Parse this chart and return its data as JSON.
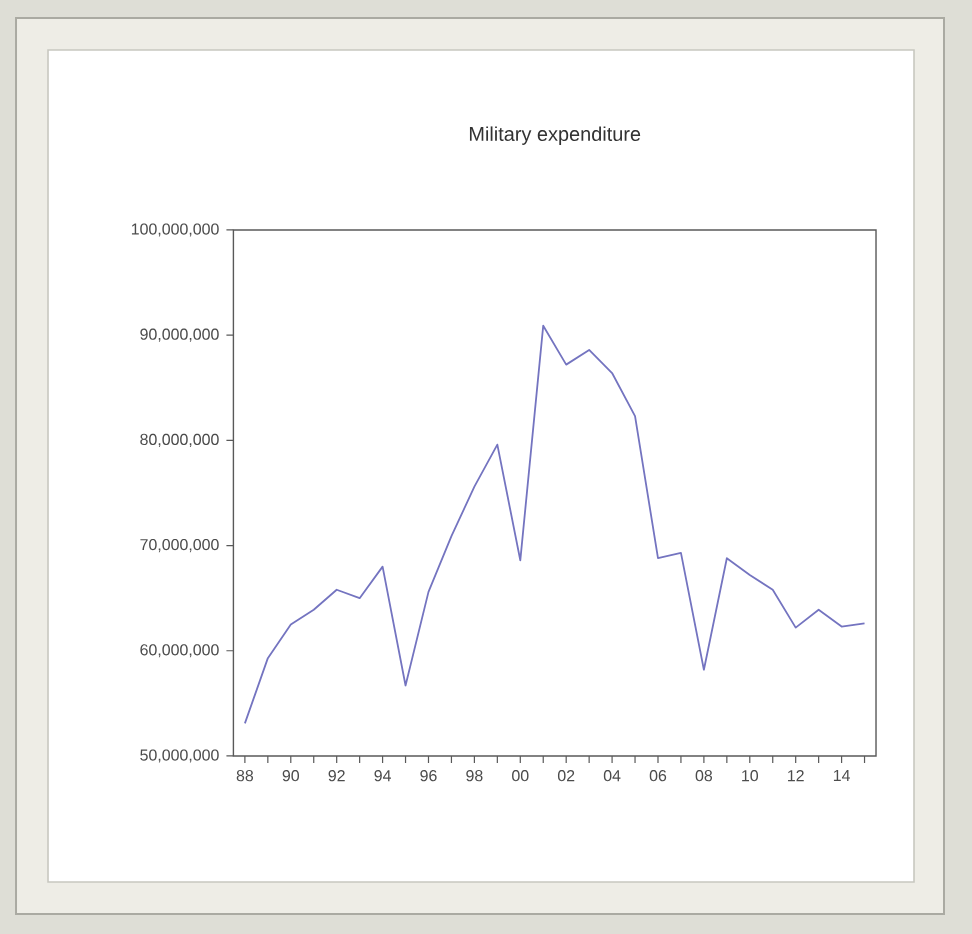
{
  "chart_data": {
    "type": "line",
    "title": "Military expenditure",
    "x": [
      1988,
      1989,
      1990,
      1991,
      1992,
      1993,
      1994,
      1995,
      1996,
      1997,
      1998,
      1999,
      2000,
      2001,
      2002,
      2003,
      2004,
      2005,
      2006,
      2007,
      2008,
      2009,
      2010,
      2011,
      2012,
      2013,
      2014,
      2015
    ],
    "values": [
      53100000,
      59300000,
      62500000,
      63900000,
      65800000,
      65000000,
      68000000,
      56700000,
      65600000,
      70900000,
      75600000,
      79600000,
      68600000,
      90900000,
      87200000,
      88600000,
      86400000,
      82300000,
      68800000,
      69300000,
      58200000,
      68800000,
      67200000,
      65800000,
      62200000,
      63900000,
      62300000,
      62600000
    ],
    "color": "#7474c0",
    "xlim": [
      1987.5,
      2015.5
    ],
    "xticks": [
      {
        "value": 1988,
        "label": "88"
      },
      {
        "value": 1989,
        "label": null
      },
      {
        "value": 1990,
        "label": "90"
      },
      {
        "value": 1991,
        "label": null
      },
      {
        "value": 1992,
        "label": "92"
      },
      {
        "value": 1993,
        "label": null
      },
      {
        "value": 1994,
        "label": "94"
      },
      {
        "value": 1995,
        "label": null
      },
      {
        "value": 1996,
        "label": "96"
      },
      {
        "value": 1997,
        "label": null
      },
      {
        "value": 1998,
        "label": "98"
      },
      {
        "value": 1999,
        "label": null
      },
      {
        "value": 2000,
        "label": "00"
      },
      {
        "value": 2001,
        "label": null
      },
      {
        "value": 2002,
        "label": "02"
      },
      {
        "value": 2003,
        "label": null
      },
      {
        "value": 2004,
        "label": "04"
      },
      {
        "value": 2005,
        "label": null
      },
      {
        "value": 2006,
        "label": "06"
      },
      {
        "value": 2007,
        "label": null
      },
      {
        "value": 2008,
        "label": "08"
      },
      {
        "value": 2009,
        "label": null
      },
      {
        "value": 2010,
        "label": "10"
      },
      {
        "value": 2011,
        "label": null
      },
      {
        "value": 2012,
        "label": "12"
      },
      {
        "value": 2013,
        "label": null
      },
      {
        "value": 2014,
        "label": "14"
      },
      {
        "value": 2015,
        "label": null
      }
    ],
    "ylim": [
      50000000,
      100000000
    ],
    "yticks": [
      {
        "value": 50000000,
        "label": "50,000,000"
      },
      {
        "value": 60000000,
        "label": "60,000,000"
      },
      {
        "value": 70000000,
        "label": "70,000,000"
      },
      {
        "value": 80000000,
        "label": "80,000,000"
      },
      {
        "value": 90000000,
        "label": "90,000,000"
      },
      {
        "value": 100000000,
        "label": "100,000,000"
      }
    ]
  }
}
